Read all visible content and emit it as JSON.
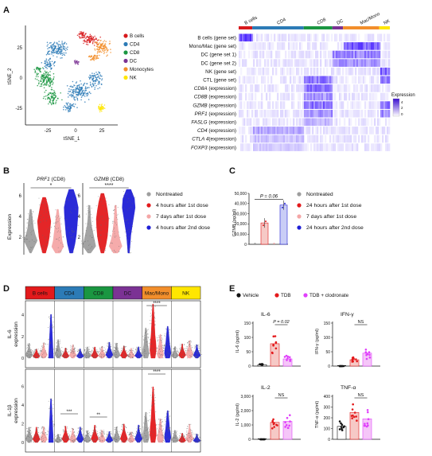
{
  "panels": {
    "A": {
      "label": "A",
      "tsne": {
        "xlabel": "tSNE_1",
        "ylabel": "tSNE_2",
        "xticks": [
          "-25",
          "0",
          "25"
        ],
        "yticks": [
          "25",
          "0",
          "-25"
        ],
        "legend": [
          {
            "name": "B cells",
            "color": "#d7191c"
          },
          {
            "name": "CD4",
            "color": "#2c7bb6"
          },
          {
            "name": "CD8",
            "color": "#1a9641"
          },
          {
            "name": "DC",
            "color": "#7b3294"
          },
          {
            "name": "Monocytes",
            "color": "#f28e2b"
          },
          {
            "name": "NK",
            "color": "#ffe600"
          }
        ]
      },
      "heatmap": {
        "groups": [
          {
            "name": "B cells",
            "color": "#d7191c"
          },
          {
            "name": "CD4",
            "color": "#2c7bb6"
          },
          {
            "name": "CD8",
            "color": "#1a9641"
          },
          {
            "name": "DC",
            "color": "#7b3294"
          },
          {
            "name": "Mac/Mono",
            "color": "#f28e2b"
          },
          {
            "name": "NK",
            "color": "#ffe600"
          }
        ],
        "rows": [
          {
            "gene": "B cells",
            "suffix": " (gene set)",
            "italic": false
          },
          {
            "gene": "Mono/Mac",
            "suffix": " (gene set)",
            "italic": false
          },
          {
            "gene": "DC",
            "suffix": " (gene set 1)",
            "italic": false
          },
          {
            "gene": "DC",
            "suffix": " (gene set 2)",
            "italic": false
          },
          {
            "gene": "NK",
            "suffix": " (gene set)",
            "italic": false
          },
          {
            "gene": "CTL",
            "suffix": " (gene set)",
            "italic": false
          },
          {
            "gene": "CD8A",
            "suffix": " (expression)",
            "italic": true
          },
          {
            "gene": "CD8B",
            "suffix": " (expression)",
            "italic": true
          },
          {
            "gene": "GZMB",
            "suffix": " (expression)",
            "italic": true
          },
          {
            "gene": "PRF1",
            "suffix": " (expression)",
            "italic": true
          },
          {
            "gene": "FASLG",
            "suffix": " (expression)",
            "italic": true
          },
          {
            "gene": "CD4",
            "suffix": " (expression)",
            "italic": true
          },
          {
            "gene": "CTLA 4",
            "suffix": "(expression)",
            "italic": true
          },
          {
            "gene": "FOXP3",
            "suffix": " (expression)",
            "italic": true
          }
        ],
        "colorbar": {
          "title": "Expression",
          "ticks": [
            "4",
            "2",
            "0"
          ]
        }
      }
    },
    "B": {
      "label": "B",
      "ylabel": "Expression",
      "yticks": [
        "2",
        "4",
        "6"
      ],
      "subpanels": [
        {
          "gene": "PRF1",
          "cell": " (CD8)",
          "sig": "*",
          "scale": "low"
        },
        {
          "gene": "GZMB",
          "cell": " (CD8)",
          "sig": "****",
          "scale": "high"
        }
      ],
      "legend": [
        {
          "name": "Nontreated",
          "color": "#9e9e9e"
        },
        {
          "name": "4 hours after 1st dose",
          "color": "#e31a1c"
        },
        {
          "name": "7 days after 1st dose",
          "color": "#f4a6a6"
        },
        {
          "name": "4 hours after 2nd dose",
          "color": "#1f1fd6"
        }
      ]
    },
    "C": {
      "label": "C",
      "ylabel": "GZMB (pg/ml)",
      "yticks": [
        "0",
        "10,000",
        "20,000",
        "30,000",
        "40,000",
        "50,000"
      ],
      "pvalue": "P = 0.06",
      "bars": [
        {
          "name": "Nontreated",
          "value": 0
        },
        {
          "name": "24 hours after 1st dose",
          "value": 21000
        },
        {
          "name": "7 days after 1st dose",
          "value": 0
        },
        {
          "name": "24 hours after 2nd dose",
          "value": 38500
        }
      ],
      "legend": [
        {
          "name": "Nontreated",
          "color": "#9e9e9e"
        },
        {
          "name": "24 hours after 1st dose",
          "color": "#e31a1c"
        },
        {
          "name": "7 days after 1st dose",
          "color": "#f4a6a6"
        },
        {
          "name": "24 hours after 2nd dose",
          "color": "#1f1fd6"
        }
      ]
    },
    "D": {
      "label": "D",
      "groups": [
        {
          "name": "B cells",
          "color": "#e31a1c"
        },
        {
          "name": "CD4",
          "color": "#2c7bb6"
        },
        {
          "name": "CD8",
          "color": "#1a9641"
        },
        {
          "name": "DC",
          "color": "#7b3294"
        },
        {
          "name": "Mac/Mono",
          "color": "#f28e2b"
        },
        {
          "name": "NK",
          "color": "#ffe600"
        }
      ],
      "rows": [
        {
          "label": "IL-6",
          "sublabel": "expression",
          "yticks": [
            "0",
            "2",
            "4"
          ]
        },
        {
          "label": "IL-1β",
          "sublabel": "expression",
          "yticks": [
            "0",
            "2",
            "4",
            "6"
          ]
        }
      ],
      "sig": {
        "row1_macmono": "****",
        "row2_cd4": "***",
        "row2_cd8": "**",
        "row2_macmono": "****"
      }
    },
    "E": {
      "label": "E",
      "legend": [
        {
          "name": "Vehicle",
          "color": "#111111"
        },
        {
          "name": "TDB",
          "color": "#e31a1c"
        },
        {
          "name": "TDB + clodronate",
          "color": "#e040fb"
        }
      ],
      "charts": [
        {
          "title": "IL-6",
          "ylabel": "IL-6 (pg/ml)",
          "yticks": [
            "0",
            "50",
            "100",
            "150"
          ],
          "ymax": 150,
          "sig": "P = 0.02",
          "values": [
            5,
            78,
            25
          ]
        },
        {
          "title": "IFN-γ",
          "ylabel": "IFN-γ (pg/ml)",
          "yticks": [
            "0",
            "50",
            "100",
            "150"
          ],
          "ymax": 150,
          "sig": "NS",
          "values": [
            0,
            22,
            45
          ]
        },
        {
          "title": "IL-2",
          "ylabel": "IL-2 (pg/ml)",
          "yticks": [
            "0",
            "1,000",
            "2,000",
            "3,000"
          ],
          "ymax": 3000,
          "sig": "NS",
          "values": [
            0,
            1180,
            1250
          ]
        },
        {
          "title": "TNF-α",
          "ylabel": "TNF-α (pg/ml)",
          "yticks": [
            "0",
            "100",
            "200",
            "300",
            "400"
          ],
          "ymax": 400,
          "sig": "NS",
          "values": [
            120,
            250,
            190
          ]
        }
      ]
    }
  }
}
